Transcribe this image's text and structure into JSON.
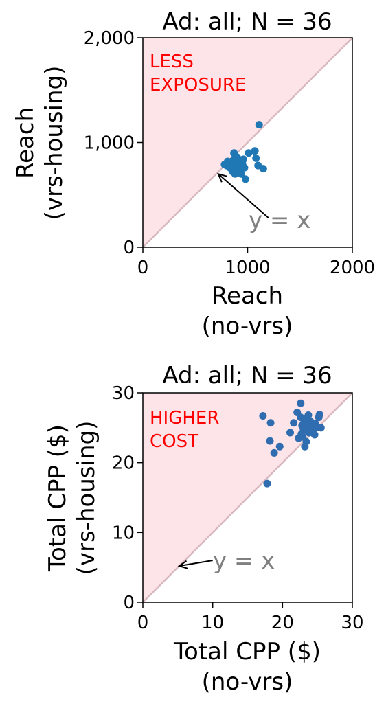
{
  "chart_data": [
    {
      "type": "scatter",
      "title": "Ad: all; N = 36",
      "xlabel": [
        "Reach",
        "(no-vrs)"
      ],
      "ylabel": [
        "Reach",
        "(vrs-housing)"
      ],
      "xlim": [
        0,
        2000
      ],
      "ylim": [
        0,
        2000
      ],
      "x_ticks": [
        0,
        1000,
        2000
      ],
      "x_tick_labels": [
        "0",
        "1000",
        "2000"
      ],
      "y_ticks": [
        0,
        1000,
        2000
      ],
      "y_tick_labels": [
        "0",
        "1,000",
        "2,000"
      ],
      "region_label": [
        "LESS",
        "EXPOSURE"
      ],
      "region_fill": "#fde4e8",
      "diagonal_color": "#d9b8bf",
      "point_color": "#1f77b4",
      "region_label_color": "#ff0000",
      "annotation": {
        "text": "y = x",
        "arrow_to": [
          720,
          700
        ],
        "text_at": [
          1200,
          280
        ]
      },
      "points": [
        [
          1110,
          1170
        ],
        [
          1070,
          920
        ],
        [
          1010,
          900
        ],
        [
          1080,
          850
        ],
        [
          1100,
          780
        ],
        [
          1150,
          750
        ],
        [
          980,
          650
        ],
        [
          870,
          900
        ],
        [
          900,
          860
        ],
        [
          800,
          780
        ],
        [
          780,
          790
        ],
        [
          820,
          800
        ],
        [
          840,
          780
        ],
        [
          850,
          820
        ],
        [
          860,
          760
        ],
        [
          870,
          840
        ],
        [
          880,
          790
        ],
        [
          890,
          800
        ],
        [
          900,
          780
        ],
        [
          910,
          830
        ],
        [
          920,
          760
        ],
        [
          930,
          810
        ],
        [
          940,
          790
        ],
        [
          950,
          800
        ],
        [
          860,
          720
        ],
        [
          880,
          700
        ],
        [
          900,
          740
        ],
        [
          920,
          720
        ],
        [
          940,
          700
        ],
        [
          830,
          760
        ],
        [
          810,
          820
        ],
        [
          890,
          840
        ],
        [
          960,
          840
        ],
        [
          970,
          760
        ],
        [
          850,
          740
        ],
        [
          870,
          810
        ]
      ]
    },
    {
      "type": "scatter",
      "title": "Ad: all; N = 36",
      "xlabel": [
        "Total CPP ($)",
        "(no-vrs)"
      ],
      "ylabel": [
        "Total CPP ($)",
        "(vrs-housing)"
      ],
      "xlim": [
        0,
        30
      ],
      "ylim": [
        0,
        30
      ],
      "x_ticks": [
        0,
        10,
        20,
        30
      ],
      "x_tick_labels": [
        "0",
        "10",
        "20",
        "30"
      ],
      "y_ticks": [
        0,
        10,
        20,
        30
      ],
      "y_tick_labels": [
        "0",
        "10",
        "20",
        "30"
      ],
      "region_label": [
        "HIGHER",
        "COST"
      ],
      "region_fill": "#fde4e8",
      "diagonal_color": "#d9b8bf",
      "point_color": "#2f6db0",
      "region_label_color": "#ff0000",
      "annotation": {
        "text": "y = x",
        "arrow_to": [
          5.2,
          5.2
        ],
        "text_at": [
          10,
          6
        ]
      },
      "points": [
        [
          17.2,
          26.7
        ],
        [
          18.3,
          25.7
        ],
        [
          18.2,
          23.1
        ],
        [
          18.8,
          21.4
        ],
        [
          19.6,
          22.3
        ],
        [
          17.8,
          17.0
        ],
        [
          21.1,
          24.3
        ],
        [
          21.6,
          25.7
        ],
        [
          22.1,
          27.2
        ],
        [
          22.3,
          23.5
        ],
        [
          22.6,
          28.5
        ],
        [
          22.6,
          26.5
        ],
        [
          22.8,
          25.3
        ],
        [
          23.0,
          24.6
        ],
        [
          23.1,
          26.0
        ],
        [
          23.2,
          22.3
        ],
        [
          23.3,
          25.0
        ],
        [
          23.4,
          26.3
        ],
        [
          23.5,
          24.8
        ],
        [
          23.6,
          25.5
        ],
        [
          23.7,
          26.8
        ],
        [
          23.8,
          24.3
        ],
        [
          23.9,
          25.2
        ],
        [
          24.0,
          25.9
        ],
        [
          24.1,
          24.6
        ],
        [
          24.3,
          25.3
        ],
        [
          24.5,
          24.9
        ],
        [
          24.7,
          25.6
        ],
        [
          25.0,
          25.1
        ],
        [
          25.2,
          26.5
        ],
        [
          25.3,
          26.9
        ],
        [
          25.5,
          25.0
        ],
        [
          22.9,
          23.7
        ],
        [
          23.4,
          23.0
        ],
        [
          24.6,
          24.0
        ],
        [
          22.7,
          24.1
        ]
      ]
    }
  ]
}
